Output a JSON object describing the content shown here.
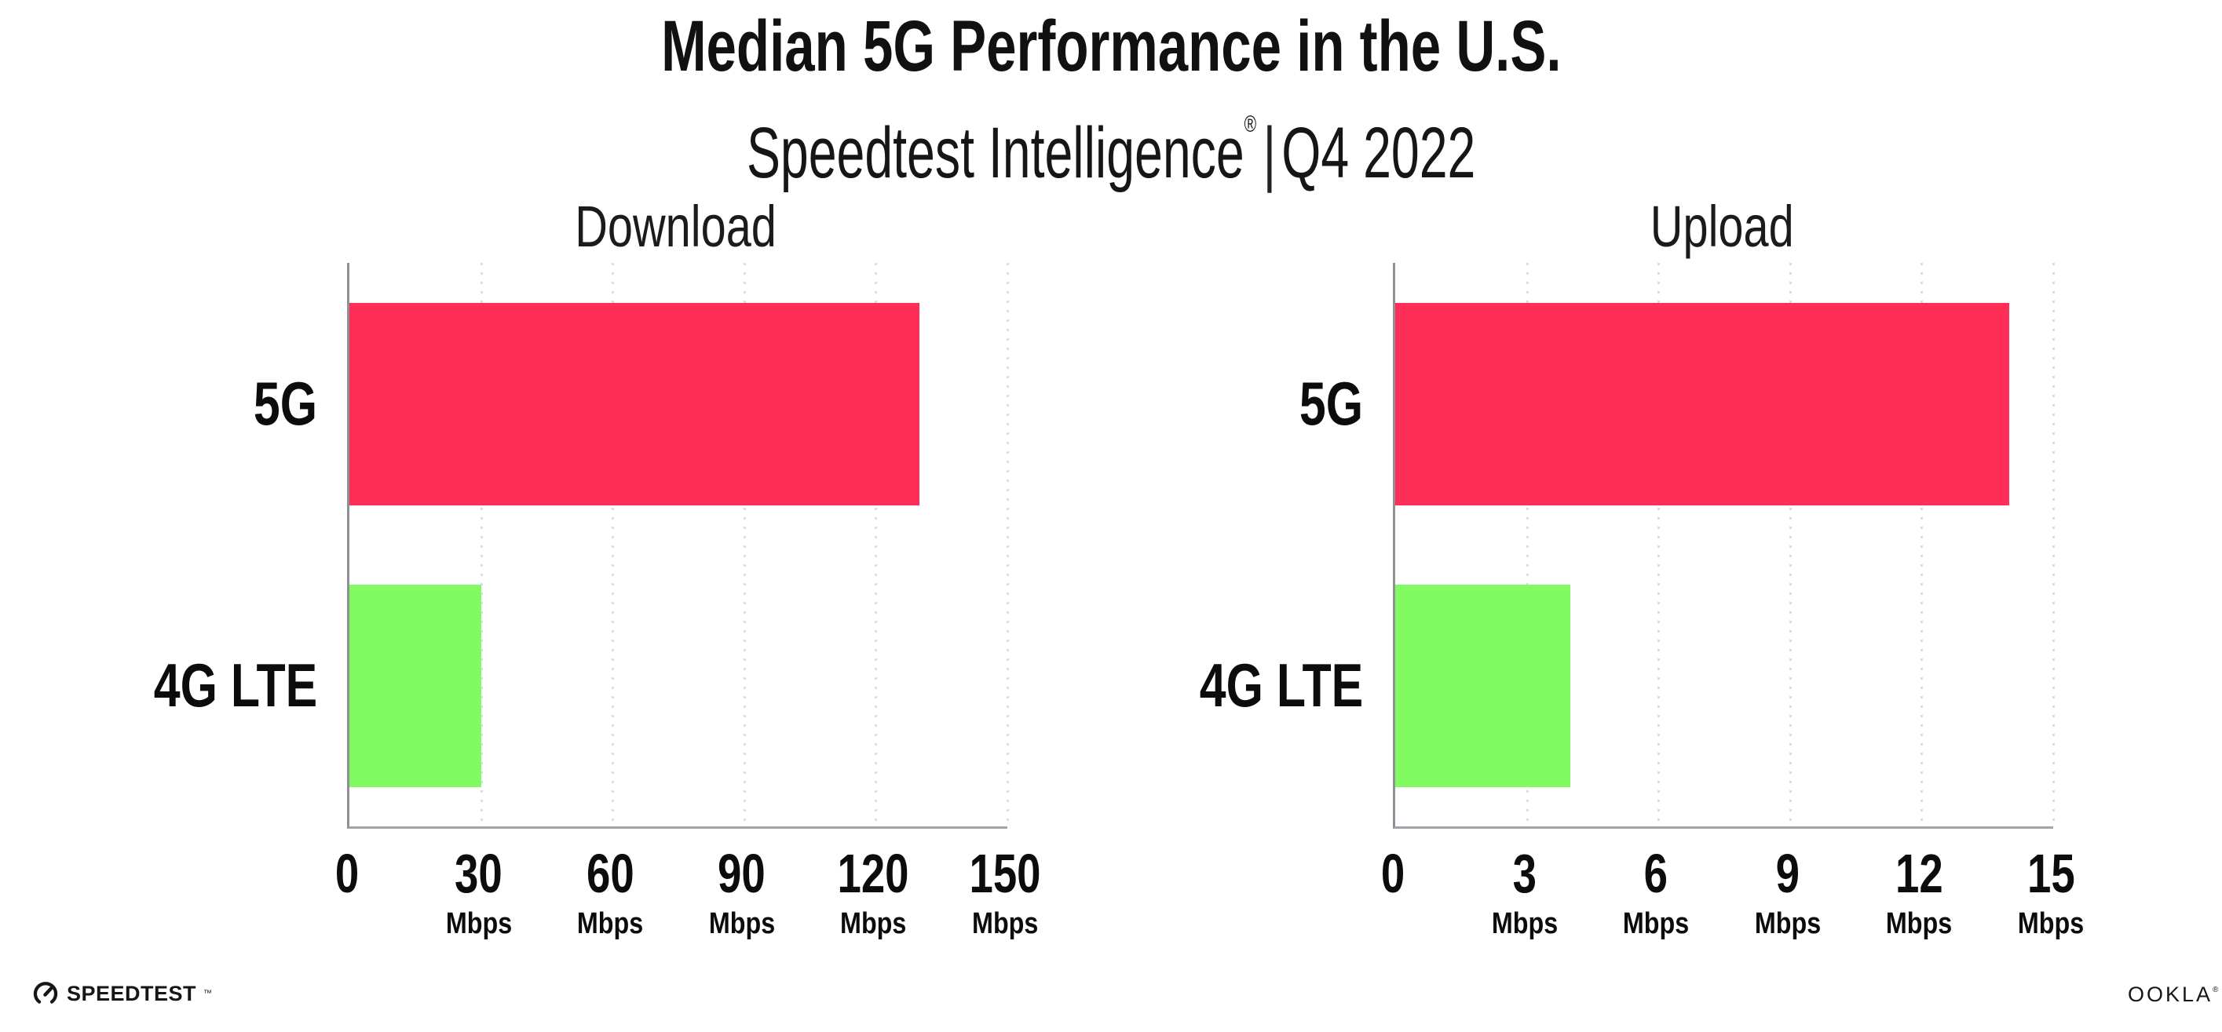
{
  "title": "Median 5G Performance in the U.S.",
  "subtitle": {
    "brand": "Speedtest Intelligence",
    "registered": "®",
    "separator": "|",
    "period": "Q4 2022"
  },
  "colors": {
    "bar_5g": "#FF2E56",
    "bar_4g_lte": "#81FB61",
    "gridline": "#dcdce6",
    "axis": "#8f8f97",
    "text": "#111111",
    "background": "#ffffff"
  },
  "footer": {
    "speedtest_label": "SPEEDTEST",
    "speedtest_trademark": "™",
    "ookla_label": "OOKLA",
    "ookla_registered": "®"
  },
  "chart_data": [
    {
      "type": "bar",
      "orientation": "horizontal",
      "title": "Download",
      "categories": [
        "5G",
        "4G LTE"
      ],
      "values": [
        130,
        30
      ],
      "unit": "Mbps",
      "xlim": [
        0,
        150
      ],
      "xticks": [
        0,
        30,
        60,
        90,
        120,
        150
      ],
      "bar_colors": [
        "#FF2E56",
        "#81FB61"
      ],
      "grid": "dotted-vertical",
      "legend": "none"
    },
    {
      "type": "bar",
      "orientation": "horizontal",
      "title": "Upload",
      "categories": [
        "5G",
        "4G LTE"
      ],
      "values": [
        14,
        4
      ],
      "unit": "Mbps",
      "xlim": [
        0,
        15
      ],
      "xticks": [
        0,
        3,
        6,
        9,
        12,
        15
      ],
      "bar_colors": [
        "#FF2E56",
        "#81FB61"
      ],
      "grid": "dotted-vertical",
      "legend": "none"
    }
  ]
}
